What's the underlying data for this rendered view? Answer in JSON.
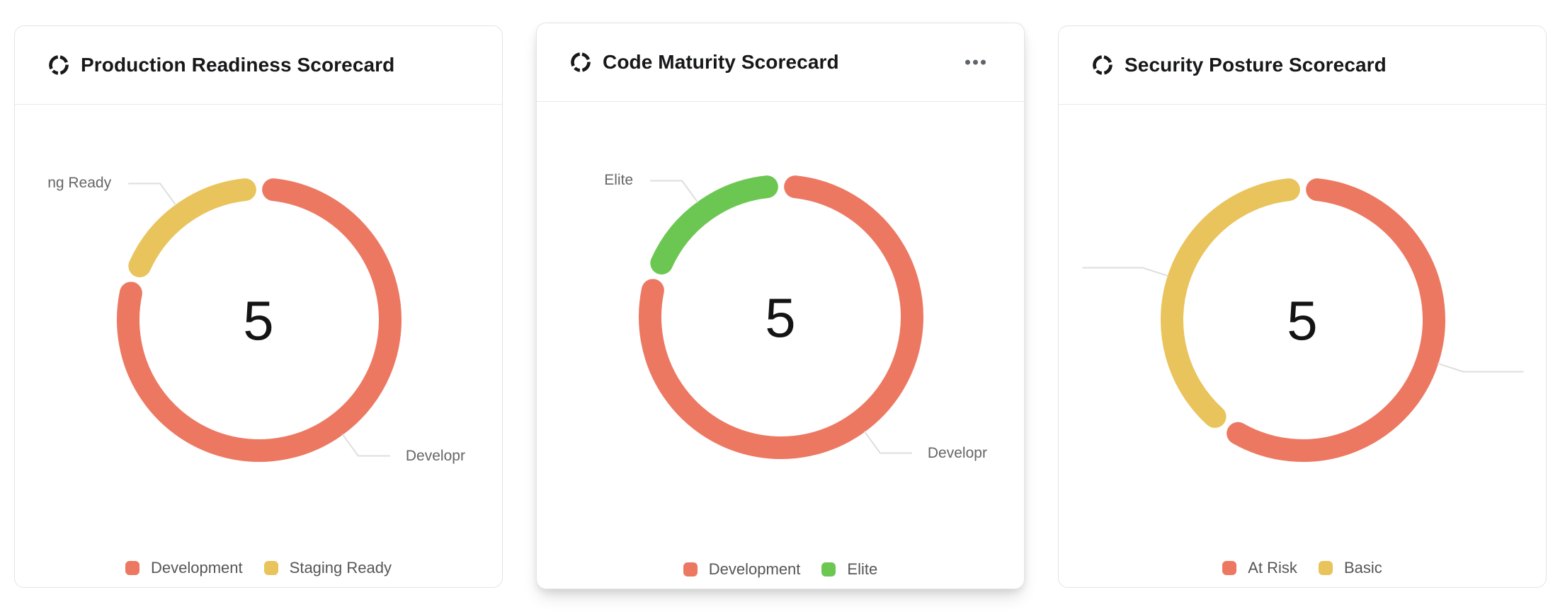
{
  "cards": [
    {
      "title": "Production Readiness Scorecard",
      "icon": "donut-chart-icon",
      "has_menu": false
    },
    {
      "title": "Code Maturity Scorecard",
      "icon": "donut-chart-icon",
      "has_menu": true,
      "menu_icon": "ellipsis-menu-icon"
    },
    {
      "title": "Security Posture Scorecard",
      "icon": "donut-chart-icon",
      "has_menu": false
    }
  ],
  "chart_data": [
    {
      "type": "pie",
      "subtype": "donut",
      "title": "Production Readiness Scorecard",
      "center_total": "5",
      "categories": [
        "Development",
        "Staging Ready"
      ],
      "values": [
        4,
        1
      ],
      "colors": [
        "#ED7862",
        "#E9C45C"
      ],
      "legend": [
        "Development",
        "Staging Ready"
      ],
      "legend_position": "bottom",
      "callouts": [
        {
          "segment_index": 1,
          "full_label": "Staging Ready",
          "visible_text": "ng Ready"
        },
        {
          "segment_index": 0,
          "full_label": "Development",
          "visible_text": "Developr"
        }
      ]
    },
    {
      "type": "pie",
      "subtype": "donut",
      "title": "Code Maturity Scorecard",
      "center_total": "5",
      "categories": [
        "Development",
        "Elite"
      ],
      "values": [
        4,
        1
      ],
      "colors": [
        "#ED7862",
        "#6CC752"
      ],
      "legend": [
        "Development",
        "Elite"
      ],
      "legend_position": "bottom",
      "callouts": [
        {
          "segment_index": 1,
          "full_label": "Elite",
          "visible_text": "Elite"
        },
        {
          "segment_index": 0,
          "full_label": "Development",
          "visible_text": "Developr"
        }
      ]
    },
    {
      "type": "pie",
      "subtype": "donut",
      "title": "Security Posture Scorecard",
      "center_total": "5",
      "categories": [
        "At Risk",
        "Basic"
      ],
      "values": [
        3,
        2
      ],
      "colors": [
        "#ED7862",
        "#E9C45C"
      ],
      "legend": [
        "At Risk",
        "Basic"
      ],
      "legend_position": "bottom",
      "callouts": [
        {
          "segment_index": 1,
          "full_label": "Basic",
          "visible_text": ""
        },
        {
          "segment_index": 0,
          "full_label": "At Risk",
          "visible_text": ""
        }
      ]
    }
  ],
  "ui_colors": {
    "segment_red": "#ED7862",
    "segment_yellow": "#E9C45C",
    "segment_green": "#6CC752",
    "leader_line": "#dedede",
    "title_text": "#17181a",
    "label_text": "#666666"
  }
}
